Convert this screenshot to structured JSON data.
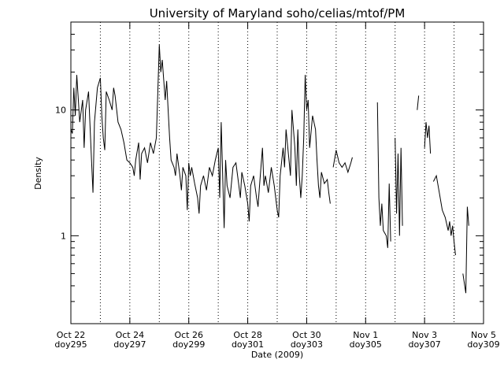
{
  "chart_data": {
    "type": "line",
    "title": "University of Maryland  soho/celias/mtof/PM",
    "ylabel": "Density",
    "xlabel": "Date (2009)",
    "color": "#000000",
    "log_y": true,
    "xlim": [
      295,
      309
    ],
    "ylim": [
      0.2,
      50
    ],
    "xticks": [
      {
        "value": 295,
        "label": "Oct 22",
        "doy": "doy295"
      },
      {
        "value": 297,
        "label": "Oct 24",
        "doy": "doy297"
      },
      {
        "value": 299,
        "label": "Oct 26",
        "doy": "doy299"
      },
      {
        "value": 301,
        "label": "Oct 28",
        "doy": "doy301"
      },
      {
        "value": 303,
        "label": "Oct 30",
        "doy": "doy303"
      },
      {
        "value": 305,
        "label": "Nov 1",
        "doy": "doy305"
      },
      {
        "value": 307,
        "label": "Nov 3",
        "doy": "doy307"
      },
      {
        "value": 309,
        "label": "Nov 5",
        "doy": "doy309"
      }
    ],
    "xgrid": [
      296,
      297,
      298,
      299,
      300,
      301,
      302,
      303,
      304,
      305,
      306,
      307,
      308
    ],
    "yticks": [
      1,
      10
    ],
    "yminorticks": [
      0.2,
      0.3,
      0.4,
      0.5,
      0.6,
      0.7,
      0.8,
      0.9,
      2,
      3,
      4,
      5,
      6,
      7,
      8,
      9,
      20,
      30,
      40,
      50
    ],
    "x": [
      295.0,
      295.05,
      295.1,
      295.15,
      295.2,
      295.3,
      295.4,
      295.45,
      295.5,
      295.6,
      295.7,
      295.75,
      295.8,
      295.9,
      296.0,
      296.05,
      296.1,
      296.15,
      296.2,
      296.3,
      296.4,
      296.45,
      296.5,
      296.6,
      296.7,
      296.8,
      296.9,
      297.0,
      297.1,
      297.15,
      297.2,
      297.3,
      297.35,
      297.4,
      297.5,
      297.6,
      297.7,
      297.8,
      297.9,
      297.95,
      298.0,
      298.05,
      298.1,
      298.2,
      298.25,
      298.3,
      298.35,
      298.4,
      298.5,
      298.55,
      298.6,
      298.7,
      298.75,
      298.8,
      298.9,
      298.95,
      299.0,
      299.05,
      299.1,
      299.2,
      299.3,
      299.35,
      299.4,
      299.5,
      299.6,
      299.7,
      299.8,
      299.9,
      300.0,
      300.05,
      300.1,
      300.15,
      300.2,
      300.25,
      300.3,
      300.4,
      300.5,
      300.6,
      300.7,
      300.75,
      300.8,
      300.9,
      301.0,
      301.05,
      301.1,
      301.2,
      301.3,
      301.35,
      301.4,
      301.5,
      301.55,
      301.6,
      301.7,
      301.8,
      301.9,
      302.0,
      302.05,
      302.1,
      302.2,
      302.25,
      302.3,
      302.4,
      302.45,
      302.5,
      302.6,
      302.65,
      302.7,
      302.75,
      302.8,
      302.85,
      302.9,
      302.95,
      303.0,
      303.05,
      303.1,
      303.2,
      303.3,
      303.35,
      303.4,
      303.45,
      303.5,
      303.6,
      303.7,
      303.75,
      303.8,
      303.85,
      303.9,
      304.0,
      304.1,
      304.2,
      304.3,
      304.4,
      304.5,
      304.55,
      305.0,
      305.4,
      305.45,
      305.5,
      305.55,
      305.6,
      305.7,
      305.75,
      305.8,
      305.85,
      305.9,
      306.0,
      306.05,
      306.1,
      306.15,
      306.2,
      306.25,
      306.5,
      306.75,
      306.8,
      306.9,
      307.0,
      307.05,
      307.1,
      307.15,
      307.2,
      307.25,
      307.3,
      307.4,
      307.5,
      307.6,
      307.7,
      307.8,
      307.85,
      307.9,
      307.95,
      308.0,
      308.05,
      308.2,
      308.3,
      308.4,
      308.45,
      308.5
    ],
    "values": [
      7,
      6.5,
      15,
      9,
      19,
      8,
      12,
      5,
      10,
      14,
      4,
      2.2,
      8,
      15,
      18,
      9,
      6,
      4.8,
      14,
      12,
      10,
      15,
      13,
      8,
      7,
      5.5,
      4,
      3.8,
      3.5,
      3,
      4,
      5.5,
      2.8,
      4.5,
      5,
      3.8,
      5.5,
      4.5,
      6,
      14,
      33,
      20,
      25,
      12,
      17,
      10,
      6,
      4,
      3.5,
      3,
      4.5,
      3,
      2.3,
      3.5,
      3,
      1.6,
      3.8,
      3,
      3.5,
      2.6,
      2,
      1.5,
      2.5,
      3,
      2.3,
      3.5,
      3,
      4,
      5,
      2,
      8,
      3,
      1.15,
      4,
      2.5,
      2,
      3.5,
      3.8,
      2.5,
      2,
      3.2,
      2.5,
      1.8,
      1.3,
      2.5,
      3,
      2,
      1.7,
      2.5,
      5,
      2.5,
      3,
      2.2,
      3.5,
      2.5,
      1.6,
      1.4,
      3,
      5,
      3.5,
      7,
      4,
      3,
      10,
      5,
      2.5,
      7,
      3,
      2,
      3,
      6,
      19,
      10,
      12,
      5,
      9,
      7,
      4,
      2.5,
      2,
      3.2,
      2.6,
      2.8,
      2.2,
      1.8,
      null,
      3.5,
      4.8,
      3.8,
      3.5,
      3.8,
      3.2,
      3.8,
      4.2,
      null,
      11.5,
      2,
      1.2,
      1.8,
      1.1,
      1,
      0.8,
      2.6,
      0.9,
      null,
      6,
      1.5,
      4.5,
      1,
      5,
      1.2,
      null,
      10,
      13,
      null,
      5,
      8,
      6,
      7.5,
      4.5,
      null,
      2.7,
      3,
      2.2,
      1.6,
      1.4,
      1.1,
      1.3,
      1,
      1.2,
      0.9,
      0.7,
      null,
      0.5,
      0.35,
      1.7,
      1.2
    ]
  }
}
